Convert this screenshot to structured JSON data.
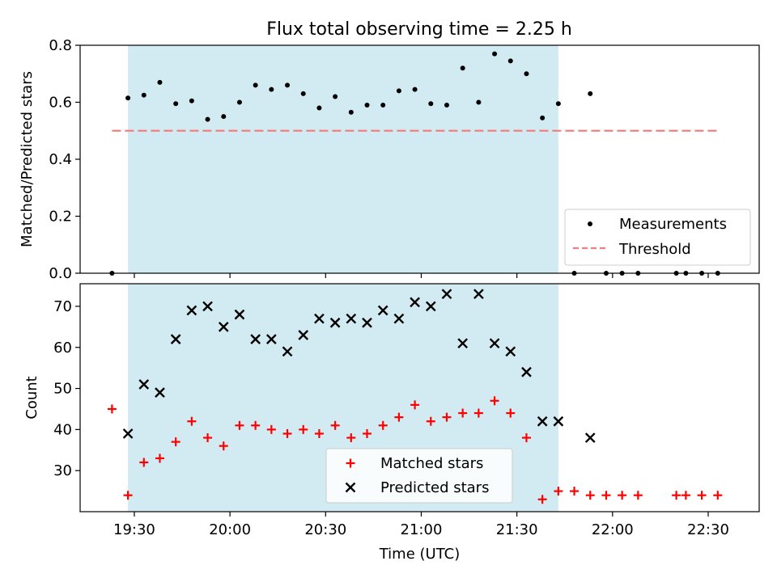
{
  "title": "Flux total observing time = 2.25 h",
  "colors": {
    "shade": "#add8e6",
    "threshold": "#f08080",
    "matched": "#ff0000",
    "predicted": "#000000",
    "measurement": "#000000"
  },
  "chart_data": [
    {
      "type": "scatter",
      "panel": "top",
      "ylabel": "Matched/Predicted stars",
      "ylim": [
        0,
        0.8
      ],
      "yticks": [
        "0.0",
        "0.2",
        "0.4",
        "0.6",
        "0.8"
      ],
      "xlim": [
        "19:13",
        "22:46"
      ],
      "x_tick_labels_shown": false,
      "shaded_interval": [
        "19:28",
        "21:43"
      ],
      "threshold": {
        "name": "Threshold",
        "value": 0.5,
        "x_range": [
          "19:23",
          "22:33"
        ],
        "style": "dashed"
      },
      "legend": {
        "position": "lower right",
        "entries": [
          "Measurements",
          "Threshold"
        ]
      },
      "series": [
        {
          "name": "Measurements",
          "marker": "dot",
          "points": [
            [
              "19:23",
              0.0
            ],
            [
              "19:28",
              0.615
            ],
            [
              "19:33",
              0.625
            ],
            [
              "19:38",
              0.67
            ],
            [
              "19:43",
              0.595
            ],
            [
              "19:48",
              0.605
            ],
            [
              "19:53",
              0.54
            ],
            [
              "19:58",
              0.55
            ],
            [
              "20:03",
              0.6
            ],
            [
              "20:08",
              0.66
            ],
            [
              "20:13",
              0.645
            ],
            [
              "20:18",
              0.66
            ],
            [
              "20:23",
              0.63
            ],
            [
              "20:28",
              0.58
            ],
            [
              "20:33",
              0.62
            ],
            [
              "20:38",
              0.565
            ],
            [
              "20:43",
              0.59
            ],
            [
              "20:48",
              0.59
            ],
            [
              "20:53",
              0.64
            ],
            [
              "20:58",
              0.645
            ],
            [
              "21:03",
              0.595
            ],
            [
              "21:08",
              0.59
            ],
            [
              "21:13",
              0.72
            ],
            [
              "21:18",
              0.6
            ],
            [
              "21:23",
              0.77
            ],
            [
              "21:28",
              0.745
            ],
            [
              "21:33",
              0.7
            ],
            [
              "21:38",
              0.545
            ],
            [
              "21:43",
              0.595
            ],
            [
              "21:48",
              0.0
            ],
            [
              "21:53",
              0.63
            ],
            [
              "21:58",
              0.0
            ],
            [
              "22:03",
              0.0
            ],
            [
              "22:08",
              0.0
            ],
            [
              "22:20",
              0.0
            ],
            [
              "22:23",
              0.0
            ],
            [
              "22:28",
              0.0
            ],
            [
              "22:33",
              0.0
            ]
          ]
        }
      ]
    },
    {
      "type": "scatter",
      "panel": "bottom",
      "xlabel": "Time (UTC)",
      "ylabel": "Count",
      "ylim": [
        20,
        75.5
      ],
      "yticks": [
        "30",
        "40",
        "50",
        "60",
        "70"
      ],
      "xlim": [
        "19:13",
        "22:46"
      ],
      "xticks": [
        "19:30",
        "20:00",
        "20:30",
        "21:00",
        "21:30",
        "22:00",
        "22:30"
      ],
      "shaded_interval": [
        "19:28",
        "21:43"
      ],
      "legend": {
        "position": "lower center",
        "entries": [
          "Matched stars",
          "Predicted stars"
        ]
      },
      "series": [
        {
          "name": "Matched stars",
          "marker": "plus",
          "points": [
            [
              "19:23",
              45
            ],
            [
              "19:28",
              24
            ],
            [
              "19:33",
              32
            ],
            [
              "19:38",
              33
            ],
            [
              "19:43",
              37
            ],
            [
              "19:48",
              42
            ],
            [
              "19:53",
              38
            ],
            [
              "19:58",
              36
            ],
            [
              "20:03",
              41
            ],
            [
              "20:08",
              41
            ],
            [
              "20:13",
              40
            ],
            [
              "20:18",
              39
            ],
            [
              "20:23",
              40
            ],
            [
              "20:28",
              39
            ],
            [
              "20:33",
              41
            ],
            [
              "20:38",
              38
            ],
            [
              "20:43",
              39
            ],
            [
              "20:48",
              41
            ],
            [
              "20:53",
              43
            ],
            [
              "20:58",
              46
            ],
            [
              "21:03",
              42
            ],
            [
              "21:08",
              43
            ],
            [
              "21:13",
              44
            ],
            [
              "21:18",
              44
            ],
            [
              "21:23",
              47
            ],
            [
              "21:28",
              44
            ],
            [
              "21:33",
              38
            ],
            [
              "21:38",
              23
            ],
            [
              "21:43",
              25
            ],
            [
              "21:48",
              25
            ],
            [
              "21:53",
              24
            ],
            [
              "21:58",
              24
            ],
            [
              "22:03",
              24
            ],
            [
              "22:08",
              24
            ],
            [
              "22:20",
              24
            ],
            [
              "22:23",
              24
            ],
            [
              "22:28",
              24
            ],
            [
              "22:33",
              24
            ]
          ]
        },
        {
          "name": "Predicted stars",
          "marker": "x",
          "points": [
            [
              "19:28",
              39
            ],
            [
              "19:33",
              51
            ],
            [
              "19:38",
              49
            ],
            [
              "19:43",
              62
            ],
            [
              "19:48",
              69
            ],
            [
              "19:53",
              70
            ],
            [
              "19:58",
              65
            ],
            [
              "20:03",
              68
            ],
            [
              "20:08",
              62
            ],
            [
              "20:13",
              62
            ],
            [
              "20:18",
              59
            ],
            [
              "20:23",
              63
            ],
            [
              "20:28",
              67
            ],
            [
              "20:33",
              66
            ],
            [
              "20:38",
              67
            ],
            [
              "20:43",
              66
            ],
            [
              "20:48",
              69
            ],
            [
              "20:53",
              67
            ],
            [
              "20:58",
              71
            ],
            [
              "21:03",
              70
            ],
            [
              "21:08",
              73
            ],
            [
              "21:13",
              61
            ],
            [
              "21:18",
              73
            ],
            [
              "21:23",
              61
            ],
            [
              "21:28",
              59
            ],
            [
              "21:33",
              54
            ],
            [
              "21:38",
              42
            ],
            [
              "21:43",
              42
            ],
            [
              "21:53",
              38
            ]
          ]
        }
      ]
    }
  ]
}
